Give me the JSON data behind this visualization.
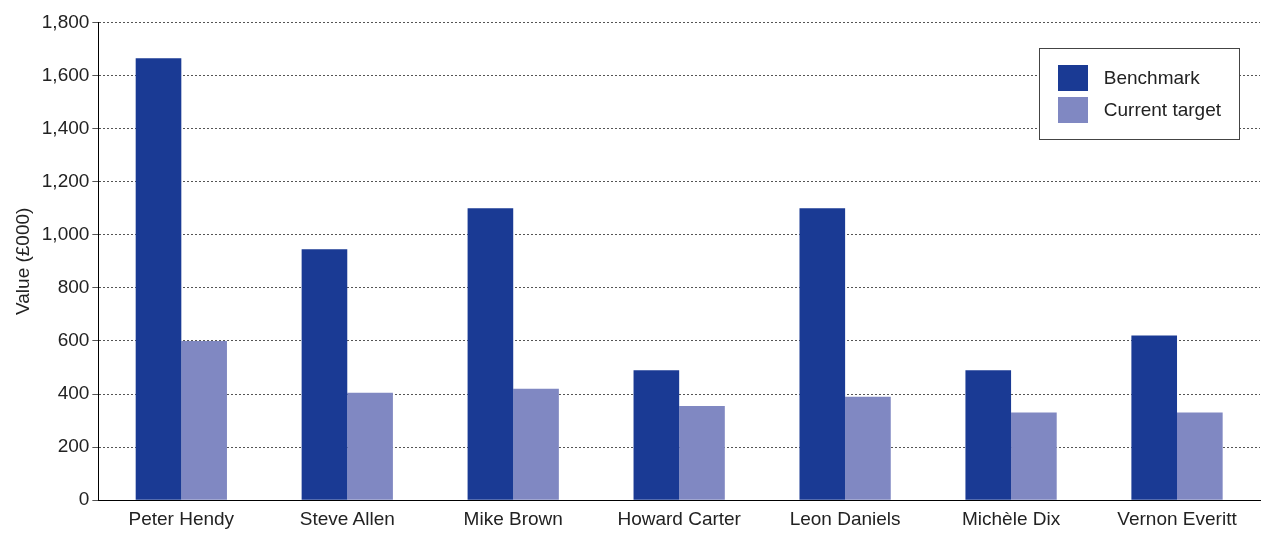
{
  "chart_data": {
    "type": "bar",
    "ylabel": "Value (£000)",
    "categories": [
      "Peter Hendy",
      "Steve Allen",
      "Mike Brown",
      "Howard Carter",
      "Leon Daniels",
      "Michèle Dix",
      "Vernon Everitt"
    ],
    "series": [
      {
        "name": "Benchmark",
        "color": "#1a3a94",
        "values": [
          1665,
          945,
          1100,
          490,
          1100,
          490,
          620
        ]
      },
      {
        "name": "Current target",
        "color": "#8088c2",
        "values": [
          600,
          405,
          420,
          355,
          390,
          330,
          330
        ]
      }
    ],
    "ylim": [
      0,
      1800
    ],
    "yticks": [
      0,
      200,
      400,
      600,
      800,
      {
        "value": 1000,
        "label": "1,000"
      },
      {
        "value": 1200,
        "label": "1,200"
      },
      {
        "value": 1400,
        "label": "1,400"
      },
      {
        "value": 1600,
        "label": "1,600"
      },
      {
        "value": 1800,
        "label": "1,800"
      }
    ],
    "grid": "y",
    "legend": "top right"
  }
}
